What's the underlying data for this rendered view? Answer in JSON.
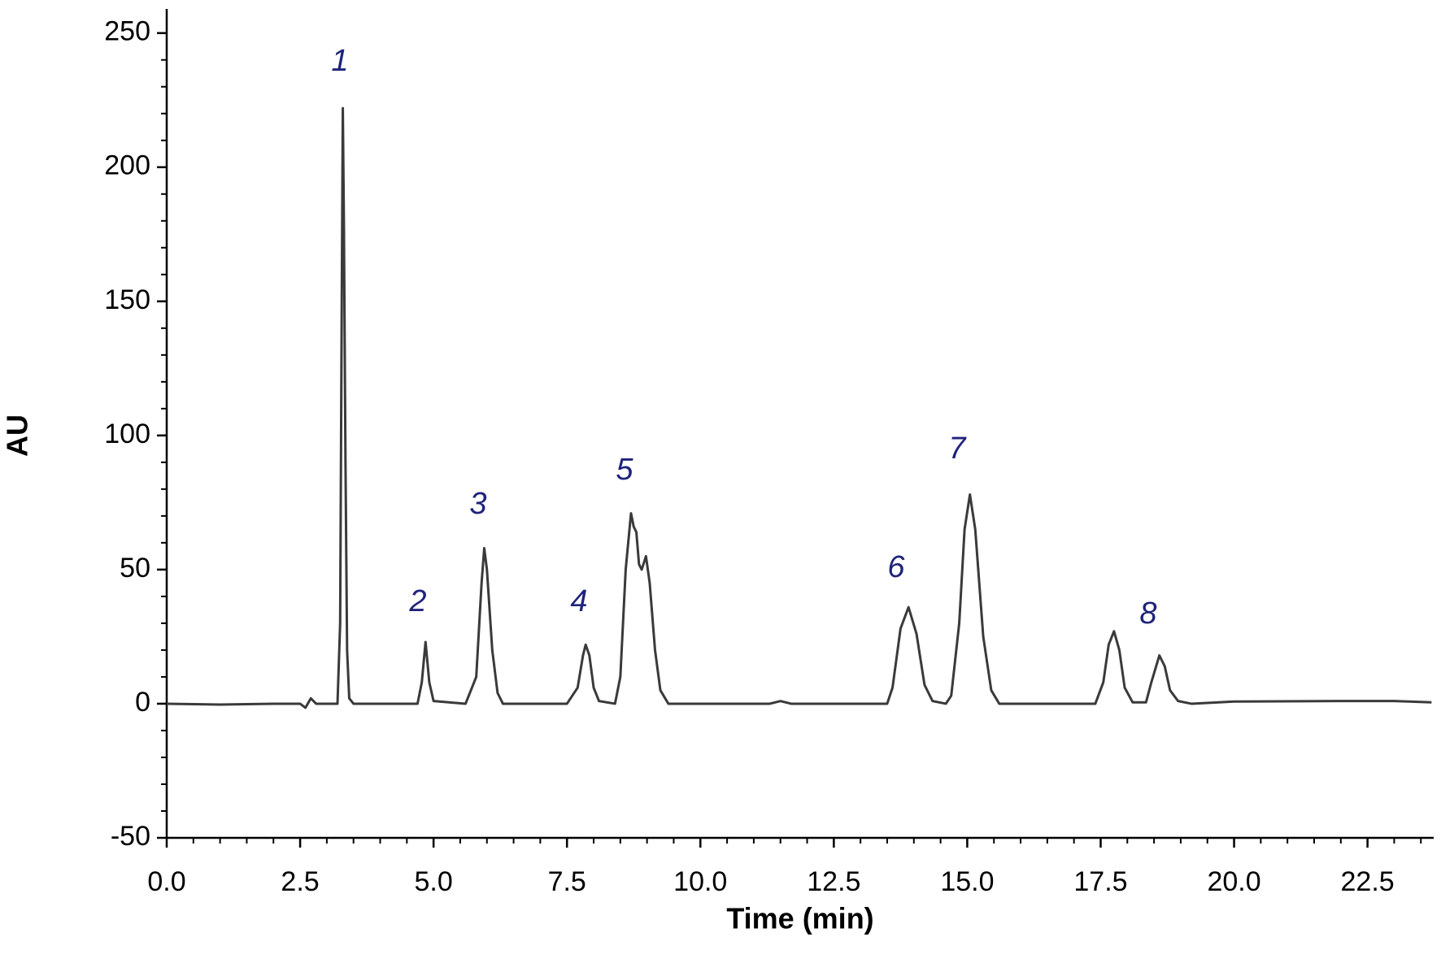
{
  "chart_data": {
    "type": "line",
    "xlabel": "Time (min)",
    "ylabel": "AU",
    "xlim": [
      0,
      23.74
    ],
    "ylim": [
      -50,
      259
    ],
    "xticks": [
      {
        "value": 0,
        "label": "0.0"
      },
      2.5,
      {
        "value": 5,
        "label": "5.0"
      },
      7.5,
      {
        "value": 10,
        "label": "10.0"
      },
      12.5,
      {
        "value": 15,
        "label": "15.0"
      },
      17.5,
      {
        "value": 20,
        "label": "20.0"
      },
      22.5
    ],
    "yticks": [
      -50,
      0,
      50,
      100,
      150,
      200,
      250
    ],
    "xminorticks": [
      0,
      0.5,
      1,
      1.5,
      2,
      2.5,
      3,
      3.5,
      4,
      4.5,
      5,
      5.5,
      6,
      6.5,
      7,
      7.5,
      8,
      8.5,
      9,
      9.5,
      10,
      10.5,
      11,
      11.5,
      12,
      12.5,
      13,
      13.5,
      14,
      14.5,
      15,
      15.5,
      16,
      16.5,
      17,
      17.5,
      18,
      18.5,
      19,
      19.5,
      20,
      20.5,
      21,
      21.5,
      22,
      22.5,
      23,
      23.5
    ],
    "yminorticks": [
      -50,
      -40,
      -30,
      -20,
      -10,
      0,
      10,
      20,
      30,
      40,
      50,
      60,
      70,
      80,
      90,
      100,
      110,
      120,
      130,
      140,
      150,
      160,
      170,
      180,
      190,
      200,
      210,
      220,
      230,
      240,
      250
    ],
    "annotations": [
      "1",
      "2",
      "3",
      "4",
      "5",
      "6",
      "7",
      "8"
    ],
    "annotation_color": "#1f237a",
    "x": [
      0,
      1,
      2,
      2.5,
      2.6,
      2.7,
      2.8,
      3.0,
      3.2,
      3.25,
      3.28,
      3.3,
      3.32,
      3.35,
      3.38,
      3.42,
      3.5,
      4.0,
      4.7,
      4.78,
      4.85,
      4.92,
      5.0,
      5.6,
      5.8,
      5.9,
      5.95,
      6.0,
      6.1,
      6.2,
      6.3,
      7.5,
      7.7,
      7.8,
      7.85,
      7.92,
      8.0,
      8.1,
      8.4,
      8.5,
      8.6,
      8.7,
      8.75,
      8.8,
      8.85,
      8.9,
      8.98,
      9.05,
      9.15,
      9.25,
      9.4,
      11.3,
      11.5,
      11.7,
      13.5,
      13.6,
      13.75,
      13.9,
      14.05,
      14.2,
      14.35,
      14.6,
      14.7,
      14.85,
      14.95,
      15.05,
      15.15,
      15.3,
      15.45,
      15.6,
      17.4,
      17.55,
      17.65,
      17.75,
      17.85,
      17.95,
      18.1,
      18.35,
      18.45,
      18.6,
      18.7,
      18.8,
      18.95,
      19.2,
      20,
      22,
      23,
      23.7
    ],
    "series": [
      {
        "color": "#3a3a3a",
        "values": [
          0,
          -0.3,
          0,
          0,
          -1.5,
          2,
          0,
          0,
          0,
          30,
          150,
          222,
          180,
          90,
          20,
          2,
          0,
          0,
          0,
          8,
          23,
          8,
          1,
          0,
          10,
          45,
          58,
          50,
          20,
          4,
          0,
          0,
          6,
          18,
          22,
          18,
          6,
          1,
          0,
          10,
          50,
          71,
          66,
          64,
          52,
          50,
          55,
          45,
          20,
          5,
          0,
          0,
          1,
          0,
          0,
          6,
          28,
          36,
          26,
          7,
          1,
          0,
          3,
          30,
          65,
          78,
          65,
          25,
          5,
          0,
          0,
          8,
          22,
          27,
          20,
          6,
          0.5,
          0.5,
          8,
          18,
          14,
          5,
          1,
          0,
          0.8,
          1,
          1,
          0.5
        ]
      }
    ],
    "axis_color": "#000000"
  }
}
